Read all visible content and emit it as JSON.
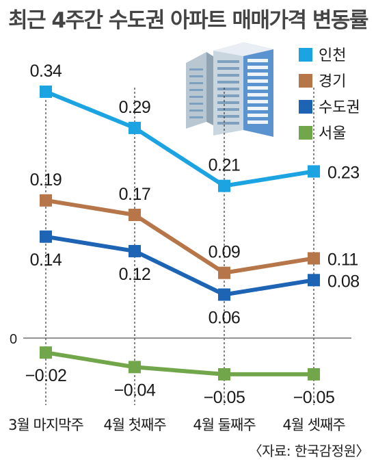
{
  "title": "최근 4주간 수도권 아파트 매매가격 변동률",
  "source": "〈자료: 한국감정원〉",
  "chart_data": {
    "type": "line",
    "title": "최근 4주간 수도권 아파트 매매가격 변동률",
    "categories": [
      "3월 마지막주",
      "4월 첫째주",
      "4월 둘째주",
      "4월 셋째주"
    ],
    "zero_label": "0",
    "ylim": [
      -0.06,
      0.36
    ],
    "legend_position": "top-right",
    "series": [
      {
        "name": "인천",
        "color": "#1ba3e2",
        "values": [
          0.34,
          0.29,
          0.21,
          0.23
        ],
        "labels": [
          "0.34",
          "0.29",
          "0.21",
          "0.23"
        ]
      },
      {
        "name": "경기",
        "color": "#b7764a",
        "values": [
          0.19,
          0.17,
          0.09,
          0.11
        ],
        "labels": [
          "0.19",
          "0.17",
          "0.09",
          "0.11"
        ]
      },
      {
        "name": "수도권",
        "color": "#1e64b5",
        "values": [
          0.14,
          0.12,
          0.06,
          0.08
        ],
        "labels": [
          "0.14",
          "0.12",
          "0.06",
          "0.08"
        ]
      },
      {
        "name": "서울",
        "color": "#72a64a",
        "values": [
          -0.02,
          -0.04,
          -0.05,
          -0.05
        ],
        "labels": [
          "−0.02",
          "−0.04",
          "−0.05",
          "−0.05"
        ]
      }
    ]
  }
}
